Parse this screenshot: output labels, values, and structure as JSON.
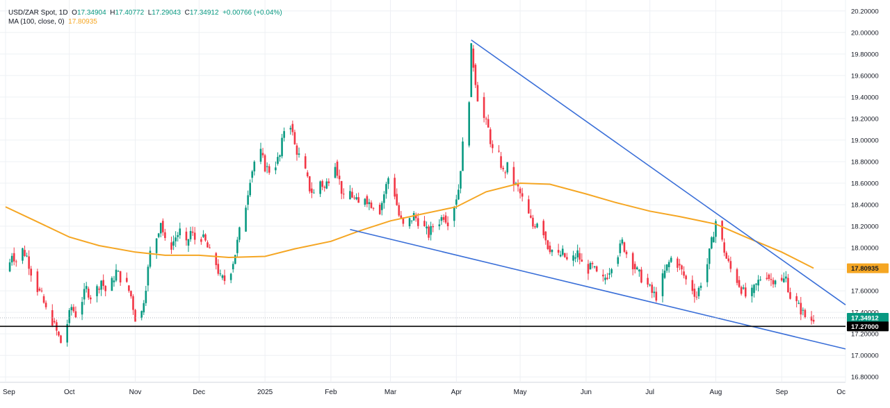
{
  "legend": {
    "symbol": "USD/ZAR Spot, 1D",
    "o_label": "O",
    "o": "17.34904",
    "h_label": "H",
    "h": "17.40772",
    "l_label": "L",
    "l": "17.29043",
    "c_label": "C",
    "c": "17.34912",
    "change": "+0.00766 (+0.04%)",
    "ma_label": "MA (100, close, 0)",
    "ma_value": "17.80935"
  },
  "colors": {
    "up": "#089981",
    "down": "#f23645",
    "ma": "#f5a623",
    "trend": "#3a6fd8",
    "support": "#000000",
    "grid": "#eef0f4",
    "axis_text": "#131722"
  },
  "chart_data": {
    "type": "candlestick",
    "x_axis": {
      "labels": [
        "Sep",
        "Oct",
        "Nov",
        "Dec",
        "2025",
        "Feb",
        "Mar",
        "Apr",
        "May",
        "Jun",
        "Jul",
        "Aug",
        "Sep",
        "Oc"
      ],
      "dates": [
        "2024-09-01",
        "2024-10-01",
        "2024-11-01",
        "2024-12-01",
        "2025-01-01",
        "2025-02-01",
        "2025-03-01",
        "2025-04-01",
        "2025-05-01",
        "2025-06-01",
        "2025-07-01",
        "2025-08-01",
        "2025-09-01",
        "2025-10-01"
      ],
      "range": [
        "2024-09-01",
        "2025-10-01"
      ]
    },
    "y_axis": {
      "ticks": [
        "20.20000",
        "20.00000",
        "19.80000",
        "19.60000",
        "19.40000",
        "19.20000",
        "19.00000",
        "18.80000",
        "18.60000",
        "18.40000",
        "18.20000",
        "18.00000",
        "17.80000",
        "17.60000",
        "17.40000",
        "17.20000",
        "17.00000",
        "16.80000"
      ],
      "range": [
        16.75,
        20.25
      ]
    },
    "grid": true,
    "price_path": [
      [
        "2024-09-02",
        17.78
      ],
      [
        "2024-09-04",
        17.95
      ],
      [
        "2024-09-06",
        17.88
      ],
      [
        "2024-09-09",
        17.98
      ],
      [
        "2024-09-11",
        17.92
      ],
      [
        "2024-09-13",
        17.78
      ],
      [
        "2024-09-16",
        17.62
      ],
      [
        "2024-09-18",
        17.55
      ],
      [
        "2024-09-20",
        17.42
      ],
      [
        "2024-09-23",
        17.32
      ],
      [
        "2024-09-25",
        17.22
      ],
      [
        "2024-09-27",
        17.12
      ],
      [
        "2024-09-30",
        17.3
      ],
      [
        "2024-10-02",
        17.45
      ],
      [
        "2024-10-04",
        17.38
      ],
      [
        "2024-10-07",
        17.52
      ],
      [
        "2024-10-09",
        17.62
      ],
      [
        "2024-10-11",
        17.55
      ],
      [
        "2024-10-14",
        17.62
      ],
      [
        "2024-10-16",
        17.7
      ],
      [
        "2024-10-18",
        17.6
      ],
      [
        "2024-10-21",
        17.68
      ],
      [
        "2024-10-23",
        17.78
      ],
      [
        "2024-10-25",
        17.72
      ],
      [
        "2024-10-28",
        17.65
      ],
      [
        "2024-10-30",
        17.55
      ],
      [
        "2024-11-01",
        17.35
      ],
      [
        "2024-11-04",
        17.4
      ],
      [
        "2024-11-06",
        17.65
      ],
      [
        "2024-11-08",
        17.95
      ],
      [
        "2024-11-11",
        18.1
      ],
      [
        "2024-11-13",
        18.25
      ],
      [
        "2024-11-15",
        18.05
      ],
      [
        "2024-11-18",
        18.02
      ],
      [
        "2024-11-20",
        18.1
      ],
      [
        "2024-11-22",
        18.15
      ],
      [
        "2024-11-25",
        18.02
      ],
      [
        "2024-11-27",
        18.15
      ],
      [
        "2024-11-29",
        18.08
      ],
      [
        "2024-12-02",
        18.1
      ],
      [
        "2024-12-04",
        18.05
      ],
      [
        "2024-12-06",
        17.95
      ],
      [
        "2024-12-09",
        17.85
      ],
      [
        "2024-12-11",
        17.72
      ],
      [
        "2024-12-13",
        17.7
      ],
      [
        "2024-12-16",
        17.8
      ],
      [
        "2024-12-18",
        17.95
      ],
      [
        "2024-12-20",
        18.15
      ],
      [
        "2024-12-23",
        18.4
      ],
      [
        "2024-12-25",
        18.65
      ],
      [
        "2024-12-27",
        18.8
      ],
      [
        "2024-12-30",
        18.88
      ],
      [
        "2025-01-01",
        18.75
      ],
      [
        "2025-01-03",
        18.72
      ],
      [
        "2025-01-06",
        18.78
      ],
      [
        "2025-01-08",
        18.85
      ],
      [
        "2025-01-10",
        19.1
      ],
      [
        "2025-01-13",
        19.15
      ],
      [
        "2025-01-15",
        18.95
      ],
      [
        "2025-01-17",
        18.85
      ],
      [
        "2025-01-20",
        18.7
      ],
      [
        "2025-01-22",
        18.55
      ],
      [
        "2025-01-24",
        18.5
      ],
      [
        "2025-01-27",
        18.62
      ],
      [
        "2025-01-29",
        18.55
      ],
      [
        "2025-01-31",
        18.65
      ],
      [
        "2025-02-03",
        18.8
      ],
      [
        "2025-02-05",
        18.62
      ],
      [
        "2025-02-07",
        18.45
      ],
      [
        "2025-02-10",
        18.52
      ],
      [
        "2025-02-12",
        18.45
      ],
      [
        "2025-02-14",
        18.4
      ],
      [
        "2025-02-17",
        18.48
      ],
      [
        "2025-02-19",
        18.42
      ],
      [
        "2025-02-21",
        18.4
      ],
      [
        "2025-02-24",
        18.35
      ],
      [
        "2025-02-26",
        18.5
      ],
      [
        "2025-02-28",
        18.65
      ],
      [
        "2025-03-03",
        18.5
      ],
      [
        "2025-03-05",
        18.3
      ],
      [
        "2025-03-07",
        18.2
      ],
      [
        "2025-03-10",
        18.25
      ],
      [
        "2025-03-12",
        18.3
      ],
      [
        "2025-03-14",
        18.25
      ],
      [
        "2025-03-17",
        18.18
      ],
      [
        "2025-03-19",
        18.12
      ],
      [
        "2025-03-21",
        18.2
      ],
      [
        "2025-03-24",
        18.25
      ],
      [
        "2025-03-26",
        18.3
      ],
      [
        "2025-03-28",
        18.25
      ],
      [
        "2025-03-31",
        18.4
      ],
      [
        "2025-04-02",
        18.55
      ],
      [
        "2025-04-04",
        18.95
      ],
      [
        "2025-04-07",
        19.4
      ],
      [
        "2025-04-08",
        19.85
      ],
      [
        "2025-04-09",
        19.7
      ],
      [
        "2025-04-11",
        19.4
      ],
      [
        "2025-04-14",
        19.2
      ],
      [
        "2025-04-16",
        19.1
      ],
      [
        "2025-04-18",
        18.9
      ],
      [
        "2025-04-21",
        18.85
      ],
      [
        "2025-04-23",
        18.7
      ],
      [
        "2025-04-25",
        18.75
      ],
      [
        "2025-04-28",
        18.6
      ],
      [
        "2025-04-30",
        18.55
      ],
      [
        "2025-05-02",
        18.45
      ],
      [
        "2025-05-05",
        18.3
      ],
      [
        "2025-05-07",
        18.2
      ],
      [
        "2025-05-09",
        18.25
      ],
      [
        "2025-05-12",
        18.15
      ],
      [
        "2025-05-14",
        18.02
      ],
      [
        "2025-05-16",
        17.98
      ],
      [
        "2025-05-19",
        17.92
      ],
      [
        "2025-05-21",
        17.95
      ],
      [
        "2025-05-23",
        17.88
      ],
      [
        "2025-05-26",
        17.9
      ],
      [
        "2025-05-28",
        17.95
      ],
      [
        "2025-05-30",
        17.85
      ],
      [
        "2025-06-02",
        17.8
      ],
      [
        "2025-06-04",
        17.82
      ],
      [
        "2025-06-06",
        17.75
      ],
      [
        "2025-06-09",
        17.7
      ],
      [
        "2025-06-11",
        17.75
      ],
      [
        "2025-06-13",
        17.85
      ],
      [
        "2025-06-16",
        17.95
      ],
      [
        "2025-06-18",
        18.05
      ],
      [
        "2025-06-20",
        17.95
      ],
      [
        "2025-06-23",
        17.85
      ],
      [
        "2025-06-25",
        17.78
      ],
      [
        "2025-06-27",
        17.72
      ],
      [
        "2025-06-30",
        17.65
      ],
      [
        "2025-07-02",
        17.58
      ],
      [
        "2025-07-04",
        17.55
      ],
      [
        "2025-07-07",
        17.72
      ],
      [
        "2025-07-09",
        17.82
      ],
      [
        "2025-07-11",
        17.9
      ],
      [
        "2025-07-14",
        17.85
      ],
      [
        "2025-07-16",
        17.78
      ],
      [
        "2025-07-18",
        17.7
      ],
      [
        "2025-07-21",
        17.62
      ],
      [
        "2025-07-23",
        17.55
      ],
      [
        "2025-07-25",
        17.68
      ],
      [
        "2025-07-28",
        17.85
      ],
      [
        "2025-07-30",
        18.05
      ],
      [
        "2025-08-01",
        18.25
      ],
      [
        "2025-08-04",
        18.05
      ],
      [
        "2025-08-06",
        17.9
      ],
      [
        "2025-08-08",
        17.8
      ],
      [
        "2025-08-11",
        17.7
      ],
      [
        "2025-08-13",
        17.62
      ],
      [
        "2025-08-15",
        17.55
      ],
      [
        "2025-08-18",
        17.58
      ],
      [
        "2025-08-20",
        17.65
      ],
      [
        "2025-08-22",
        17.72
      ],
      [
        "2025-08-25",
        17.75
      ],
      [
        "2025-08-27",
        17.7
      ],
      [
        "2025-08-29",
        17.72
      ],
      [
        "2025-09-01",
        17.68
      ],
      [
        "2025-09-03",
        17.72
      ],
      [
        "2025-09-05",
        17.55
      ],
      [
        "2025-09-08",
        17.48
      ],
      [
        "2025-09-10",
        17.42
      ],
      [
        "2025-09-12",
        17.36
      ],
      [
        "2025-09-15",
        17.33
      ],
      [
        "2025-09-16",
        17.35
      ]
    ],
    "ma_100": [
      [
        "2024-09-01",
        18.38
      ],
      [
        "2024-09-15",
        18.25
      ],
      [
        "2024-10-01",
        18.1
      ],
      [
        "2024-10-15",
        18.02
      ],
      [
        "2024-11-01",
        17.96
      ],
      [
        "2024-11-15",
        17.93
      ],
      [
        "2024-12-01",
        17.93
      ],
      [
        "2024-12-15",
        17.91
      ],
      [
        "2025-01-01",
        17.92
      ],
      [
        "2025-01-15",
        17.99
      ],
      [
        "2025-02-01",
        18.06
      ],
      [
        "2025-02-15",
        18.16
      ],
      [
        "2025-03-01",
        18.25
      ],
      [
        "2025-03-15",
        18.31
      ],
      [
        "2025-04-01",
        18.38
      ],
      [
        "2025-04-15",
        18.52
      ],
      [
        "2025-05-01",
        18.6
      ],
      [
        "2025-05-15",
        18.59
      ],
      [
        "2025-06-01",
        18.5
      ],
      [
        "2025-06-15",
        18.42
      ],
      [
        "2025-07-01",
        18.34
      ],
      [
        "2025-07-15",
        18.29
      ],
      [
        "2025-08-01",
        18.22
      ],
      [
        "2025-08-15",
        18.1
      ],
      [
        "2025-09-01",
        17.96
      ],
      [
        "2025-09-16",
        17.81
      ]
    ],
    "trendlines": [
      {
        "from": [
          "2025-04-08",
          19.93
        ],
        "to": [
          "2025-10-01",
          17.47
        ]
      },
      {
        "from": [
          "2025-02-10",
          18.17
        ],
        "to": [
          "2025-10-01",
          17.06
        ]
      }
    ],
    "hlines": [
      17.27
    ],
    "price_labels": [
      {
        "value": "17.80935",
        "y": 17.80935,
        "kind": "ma"
      },
      {
        "value": "17.34912",
        "y": 17.34912,
        "kind": "last"
      },
      {
        "value": "17.27000",
        "y": 17.27,
        "kind": "support"
      }
    ],
    "last_price": 17.34912
  }
}
